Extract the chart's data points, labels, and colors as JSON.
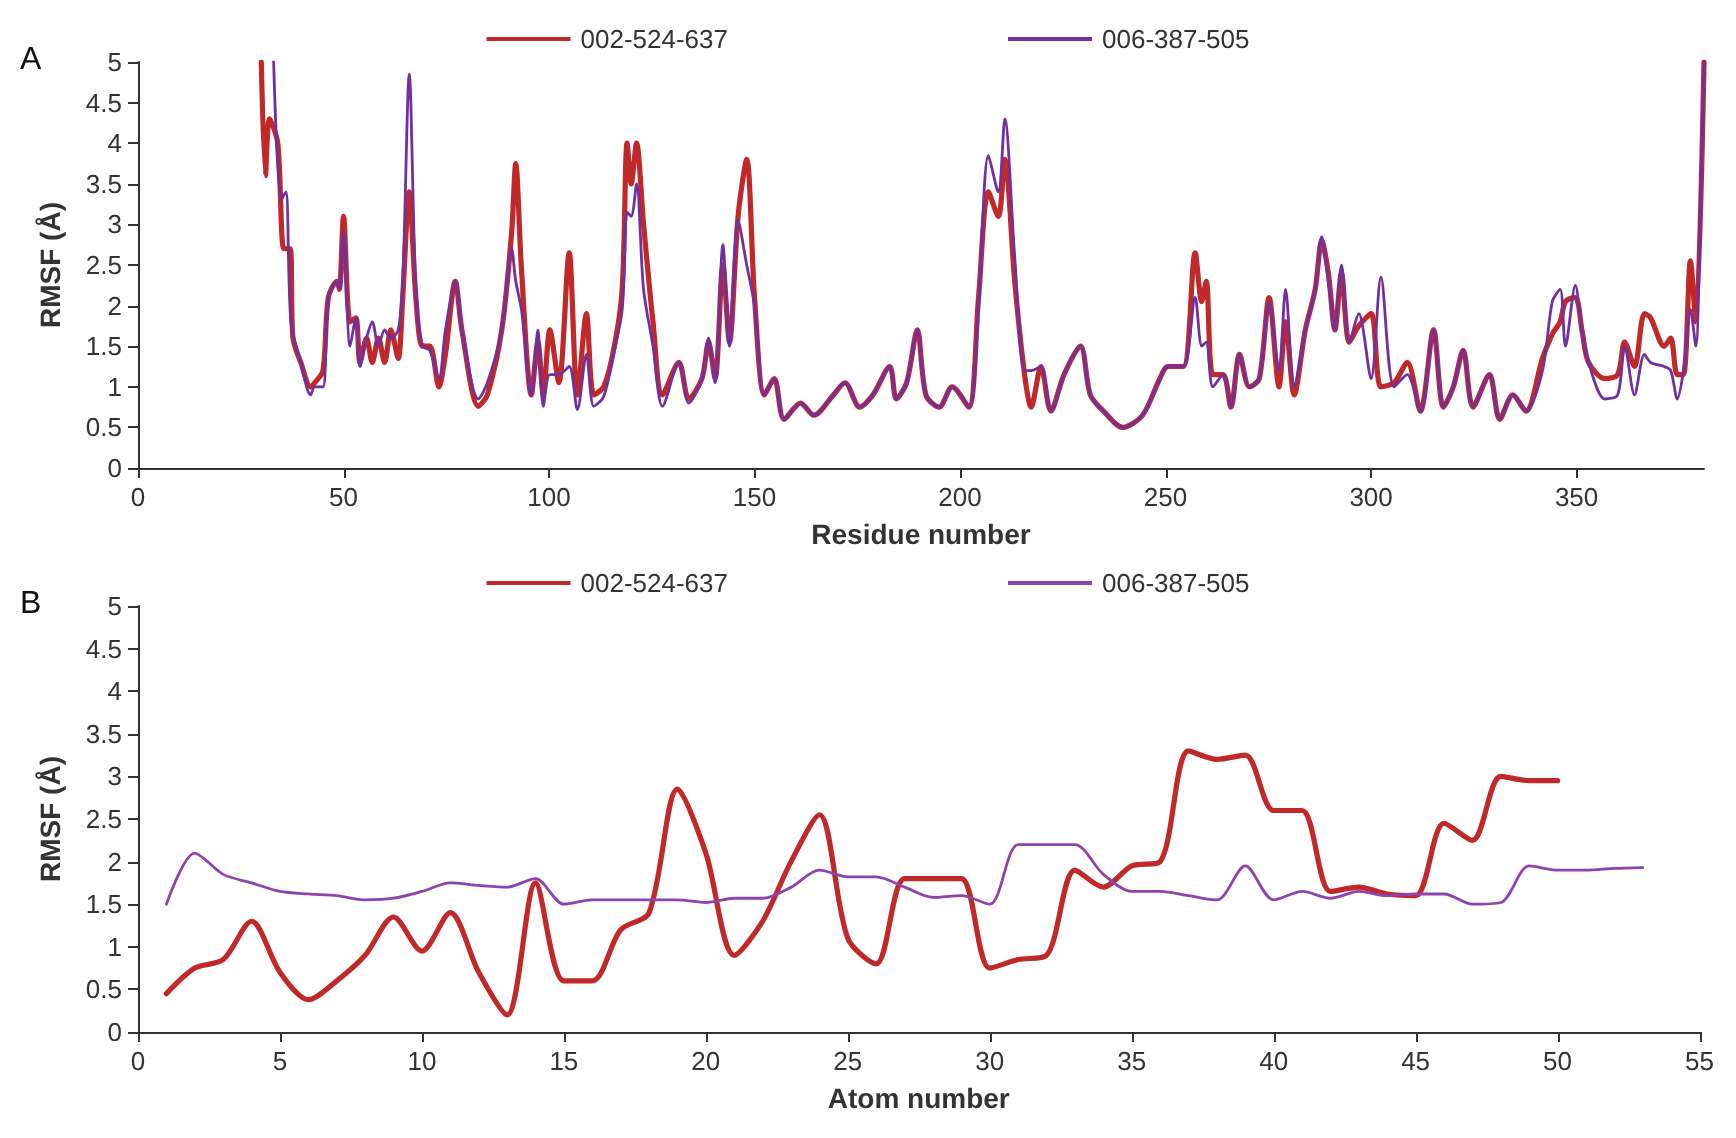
{
  "chart_data": [
    {
      "type": "line",
      "xlabel": "Residue number",
      "ylabel": "RMSF (Å)",
      "annotations": [
        "A"
      ],
      "legend": "top",
      "grid": false,
      "xlim": [
        0,
        381
      ],
      "xticks": [
        0,
        50,
        100,
        150,
        200,
        250,
        300,
        350
      ],
      "ylim": [
        0,
        5
      ],
      "yticks": [
        0,
        0.5,
        1,
        1.5,
        2,
        2.5,
        3,
        3.5,
        4,
        4.5,
        5
      ],
      "series": [
        {
          "name": "002-524-637",
          "color": "#c0282a",
          "x": [
            30,
            31,
            32,
            34,
            35.5,
            37,
            37.7,
            39.6,
            42,
            43,
            45,
            46.3,
            48.4,
            49,
            50,
            51.6,
            53,
            54,
            55.6,
            57,
            58.5,
            60,
            61.5,
            63.3,
            64.4,
            66,
            67.6,
            69.2,
            71,
            73.2,
            74.8,
            77.2,
            78.8,
            82.8,
            85,
            88.5,
            90.9,
            91.9,
            93.3,
            95.7,
            97.3,
            98.6,
            100.2,
            102.4,
            104.9,
            106.9,
            109.1,
            110.9,
            113.3,
            115.7,
            117.8,
            119,
            120,
            121.3,
            123,
            125.3,
            127.6,
            131.6,
            134,
            137.2,
            138.8,
            140.4,
            142.3,
            143.9,
            146,
            148.1,
            150,
            152.4,
            154.8,
            157.2,
            161.2,
            164.4,
            169.2,
            172,
            175.6,
            178.8,
            182.9,
            184.5,
            187,
            189.6,
            191.7,
            194.9,
            198.1,
            202.1,
            204.5,
            206.9,
            209.3,
            210.9,
            213.3,
            215.7,
            217.3,
            219.7,
            222.1,
            225.3,
            229.3,
            231.7,
            234.9,
            239.6,
            244.4,
            248.6,
            250.6,
            254.3,
            257.2,
            258.8,
            259.9,
            261.5,
            264,
            265.9,
            268,
            270.4,
            272.8,
            275.2,
            277.6,
            279.2,
            281.3,
            284,
            286.4,
            288,
            289.6,
            291.2,
            292.8,
            294.7,
            297,
            300,
            302.4,
            305.6,
            308.8,
            312,
            315.2,
            317.6,
            320,
            322.4,
            324.8,
            328.8,
            331.3,
            334.5,
            337.7,
            341.7,
            344.1,
            346,
            347.3,
            349.7,
            351.3,
            352.9,
            356.9,
            360,
            361.7,
            364.1,
            366.5,
            368,
            371.3,
            372.9,
            374.5,
            376,
            377.7,
            379,
            381
          ],
          "values": [
            5,
            3.6,
            4.3,
            4.0,
            2.7,
            2.7,
            1.6,
            1.3,
            1.0,
            1.05,
            1.2,
            2.1,
            2.3,
            2.2,
            3.1,
            1.8,
            1.85,
            1.3,
            1.6,
            1.3,
            1.6,
            1.3,
            1.7,
            1.35,
            2.1,
            3.4,
            2.1,
            1.5,
            1.5,
            1.0,
            1.4,
            2.3,
            1.7,
            0.76,
            0.9,
            1.7,
            2.9,
            3.75,
            2.45,
            0.9,
            1.55,
            0.9,
            1.7,
            1.05,
            2.65,
            0.9,
            1.9,
            0.9,
            1.0,
            1.45,
            2.2,
            4.0,
            3.5,
            4.0,
            3.0,
            1.8,
            0.9,
            1.3,
            0.85,
            1.1,
            1.55,
            1.1,
            2.5,
            1.55,
            3.1,
            3.8,
            2.1,
            0.9,
            1.1,
            0.6,
            0.8,
            0.65,
            0.9,
            1.05,
            0.75,
            0.9,
            1.25,
            0.85,
            1.05,
            1.7,
            0.9,
            0.75,
            1.0,
            0.75,
            2.1,
            3.4,
            3.1,
            3.8,
            2.3,
            1.15,
            0.75,
            1.25,
            0.7,
            1.15,
            1.5,
            0.9,
            0.7,
            0.5,
            0.65,
            1.1,
            1.25,
            1.25,
            2.65,
            2.05,
            2.3,
            1.15,
            1.15,
            0.75,
            1.4,
            1.0,
            1.1,
            2.1,
            1.0,
            1.8,
            0.9,
            1.7,
            2.2,
            2.8,
            2.4,
            1.7,
            2.4,
            1.55,
            1.75,
            1.9,
            1.0,
            1.05,
            1.3,
            0.7,
            1.7,
            0.75,
            1.0,
            1.45,
            0.75,
            1.15,
            0.6,
            0.9,
            0.7,
            1.35,
            1.65,
            1.8,
            2.05,
            2.1,
            1.7,
            1.3,
            1.1,
            1.15,
            1.55,
            1.25,
            1.9,
            1.85,
            1.5,
            1.6,
            1.15,
            1.15,
            2.55,
            1.8,
            5
          ]
        },
        {
          "name": "006-387-505",
          "color": "#7030a0",
          "x": [
            33,
            34.8,
            36,
            37.2,
            39.6,
            42,
            43,
            45,
            46.3,
            48.4,
            49,
            50,
            51.6,
            53,
            54,
            55.6,
            57,
            58.5,
            60,
            61.5,
            63.3,
            64.4,
            66,
            67.6,
            69.2,
            71,
            73.2,
            74.8,
            77.2,
            78.8,
            82.8,
            85,
            88.5,
            90.9,
            91.9,
            93.3,
            95.7,
            97.3,
            98.6,
            100.2,
            102.4,
            104.9,
            106.9,
            109.1,
            110.9,
            113.3,
            115.7,
            117.8,
            119,
            120,
            121.3,
            123,
            125.3,
            127.6,
            131.6,
            134,
            137.2,
            138.8,
            140.4,
            142.3,
            143.9,
            146,
            148.1,
            150,
            152.4,
            154.8,
            157.2,
            161.2,
            164.4,
            169.2,
            172,
            175.6,
            178.8,
            182.9,
            184.5,
            187,
            189.6,
            191.7,
            194.9,
            198.1,
            202.1,
            204.5,
            206.9,
            209.3,
            210.9,
            213.3,
            215.7,
            217.3,
            219.7,
            222.1,
            225.3,
            229.3,
            231.7,
            234.9,
            239.6,
            244.4,
            248.6,
            250.6,
            254.3,
            257.2,
            258.8,
            259.9,
            261.5,
            264,
            265.9,
            268,
            270.4,
            272.8,
            275.2,
            277.6,
            279.2,
            281.3,
            284,
            286.4,
            288,
            289.6,
            291.2,
            292.8,
            294.7,
            297,
            300,
            302.4,
            305.6,
            308.8,
            312,
            315.2,
            317.6,
            320,
            322.4,
            324.8,
            328.8,
            331.3,
            334.5,
            337.7,
            341.7,
            344.1,
            346,
            347.3,
            349.7,
            351.3,
            352.9,
            356.9,
            360,
            361.7,
            364.1,
            366.5,
            368,
            371.3,
            372.9,
            374.5,
            376,
            377.7,
            379,
            380.3,
            381
          ],
          "values": [
            5,
            3.3,
            3.4,
            1.8,
            1.3,
            0.9,
            1.0,
            1.0,
            2.1,
            2.3,
            2.2,
            2.9,
            1.5,
            1.85,
            1.25,
            1.6,
            1.8,
            1.5,
            1.7,
            1.6,
            1.7,
            2.3,
            4.85,
            2.2,
            1.5,
            1.45,
            1.1,
            1.7,
            2.3,
            1.7,
            0.85,
            1.05,
            1.7,
            2.7,
            2.3,
            1.95,
            0.9,
            1.7,
            0.76,
            1.15,
            1.15,
            1.25,
            0.72,
            1.4,
            0.76,
            0.88,
            1.4,
            1.95,
            3.15,
            3.1,
            3.5,
            2.2,
            1.5,
            0.76,
            1.3,
            0.8,
            1.1,
            1.6,
            1.05,
            2.75,
            1.5,
            3.05,
            2.5,
            2.0,
            0.9,
            1.1,
            0.6,
            0.8,
            0.65,
            0.9,
            1.05,
            0.75,
            0.9,
            1.25,
            0.85,
            1.05,
            1.7,
            0.9,
            0.75,
            1.0,
            0.75,
            2.0,
            3.85,
            3.4,
            4.3,
            2.6,
            1.2,
            1.2,
            1.25,
            0.7,
            1.15,
            1.5,
            0.9,
            0.7,
            0.5,
            0.65,
            1.1,
            1.25,
            1.25,
            2.1,
            1.5,
            1.55,
            1.0,
            1.15,
            0.75,
            1.4,
            1.0,
            1.1,
            2.05,
            1.2,
            2.2,
            1.0,
            1.7,
            2.2,
            2.85,
            2.3,
            1.7,
            2.5,
            1.55,
            1.9,
            1.1,
            2.35,
            1.0,
            1.15,
            0.7,
            1.7,
            0.75,
            1.0,
            1.45,
            0.75,
            1.15,
            0.6,
            0.9,
            0.7,
            1.2,
            2.05,
            2.2,
            1.5,
            2.25,
            1.7,
            1.3,
            0.85,
            0.9,
            1.5,
            0.9,
            1.4,
            1.3,
            1.25,
            1.2,
            0.85,
            1.2,
            1.95,
            1.5,
            3.65,
            5
          ]
        }
      ]
    },
    {
      "type": "line",
      "xlabel": "Atom number",
      "ylabel": "RMSF (Å)",
      "annotations": [
        "B"
      ],
      "legend": "top",
      "grid": false,
      "xlim": [
        0,
        55
      ],
      "xticks": [
        0,
        5,
        10,
        15,
        20,
        25,
        30,
        35,
        40,
        45,
        50,
        55
      ],
      "ylim": [
        0,
        5
      ],
      "yticks": [
        0,
        0.5,
        1,
        1.5,
        2,
        2.5,
        3,
        3.5,
        4,
        4.5,
        5
      ],
      "series": [
        {
          "name": "002-524-637",
          "color": "#c0282a",
          "x": [
            1,
            2,
            3,
            4,
            5,
            6,
            7,
            8,
            9,
            10,
            11,
            12,
            13,
            14,
            15,
            16,
            17,
            18,
            19,
            20,
            21,
            22,
            23,
            24,
            25,
            26,
            27,
            28,
            29,
            30,
            31,
            32,
            33,
            34,
            35,
            36,
            37,
            38,
            39,
            40,
            41,
            42,
            43,
            44,
            45,
            46,
            47,
            48,
            49,
            50
          ],
          "values": [
            0.45,
            0.75,
            0.85,
            1.3,
            0.7,
            0.38,
            0.6,
            0.9,
            1.35,
            0.95,
            1.4,
            0.7,
            0.2,
            1.75,
            0.6,
            0.6,
            1.2,
            1.4,
            2.85,
            2.1,
            0.9,
            1.3,
            2.0,
            2.55,
            1.1,
            0.8,
            1.8,
            1.8,
            1.8,
            0.75,
            0.85,
            0.9,
            1.9,
            1.7,
            1.95,
            2.0,
            3.3,
            3.2,
            3.25,
            2.6,
            2.6,
            1.65,
            1.7,
            1.62,
            1.6,
            2.45,
            2.25,
            3.0,
            2.95,
            2.95
          ]
        },
        {
          "name": "006-387-505",
          "color": "#8e44ad",
          "x": [
            1,
            2,
            3,
            4,
            5,
            6,
            7,
            8,
            9,
            10,
            11,
            12,
            13,
            14,
            15,
            16,
            17,
            18,
            19,
            20,
            21,
            22,
            23,
            24,
            25,
            26,
            27,
            28,
            29,
            30,
            31,
            32,
            33,
            34,
            35,
            36,
            37,
            38,
            39,
            40,
            41,
            42,
            43,
            44,
            45,
            46,
            47,
            48,
            49,
            50,
            51,
            52,
            53
          ],
          "values": [
            1.5,
            2.1,
            1.85,
            1.75,
            1.65,
            1.62,
            1.6,
            1.55,
            1.57,
            1.65,
            1.75,
            1.72,
            1.7,
            1.8,
            1.5,
            1.55,
            1.55,
            1.55,
            1.55,
            1.52,
            1.57,
            1.57,
            1.7,
            1.9,
            1.82,
            1.82,
            1.7,
            1.58,
            1.6,
            1.5,
            2.2,
            2.2,
            2.2,
            1.85,
            1.65,
            1.65,
            1.6,
            1.55,
            1.95,
            1.55,
            1.65,
            1.57,
            1.65,
            1.6,
            1.62,
            1.62,
            1.5,
            1.52,
            1.95,
            1.9,
            1.9,
            1.92,
            1.93
          ]
        }
      ]
    }
  ]
}
